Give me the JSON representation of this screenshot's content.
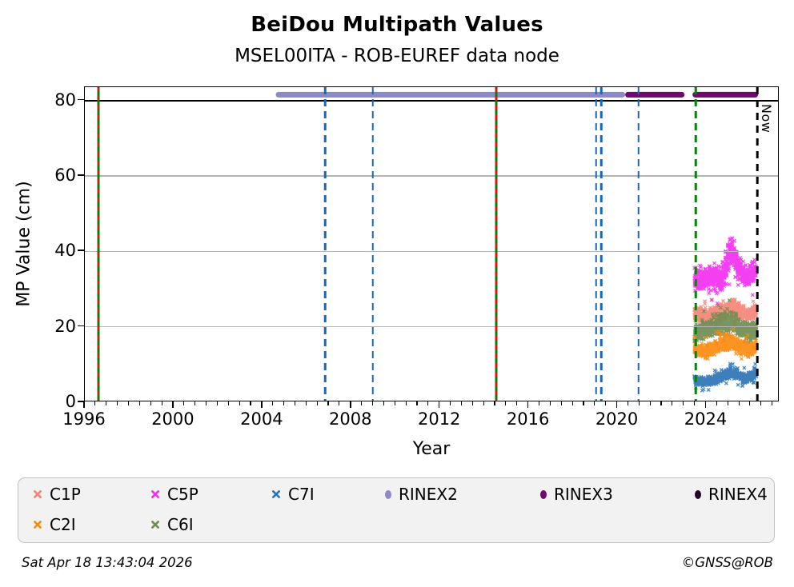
{
  "title": "BeiDou Multipath Values",
  "subtitle": "MSEL00ITA - ROB-EUREF data node",
  "footer": {
    "timestamp": "Sat Apr 18 13:43:04 2026",
    "credit": "©GNSS@ROB"
  },
  "colors": {
    "C1P": "#f58478",
    "C2I": "#fd8a0e",
    "C5P": "#f32ef0",
    "C6I": "#6f8d51",
    "C7I": "#2d74b5",
    "RINEX2": "#8d89c7",
    "RINEX3": "#6e0a6e",
    "RINEX4": "#250527",
    "event_blue": "#1868b8",
    "event_green": "#077d07",
    "event_red": "#e51212",
    "gridline": "#b4b4b4"
  },
  "chart_data": {
    "type": "scatter",
    "title": "BeiDou Multipath Values",
    "subtitle": "MSEL00ITA - ROB-EUREF data node",
    "xlabel": "Year",
    "ylabel": "MP Value (cm)",
    "xlim": [
      1996,
      2027.3
    ],
    "ylim": [
      0,
      83.5
    ],
    "x_major_ticks": [
      1996,
      2000,
      2004,
      2008,
      2012,
      2016,
      2020,
      2024
    ],
    "x_minor_step": 0.5,
    "y_ticks": [
      0,
      20,
      40,
      60,
      80
    ],
    "gridlines_y": [
      20,
      40,
      60
    ],
    "solid_hline_y": 80,
    "grid": "horizontal-only",
    "now": {
      "year": 2026.29,
      "label": "Now"
    },
    "event_lines": [
      {
        "year": 1996.6,
        "kind": "green-red"
      },
      {
        "year": 2006.82,
        "kind": "blue"
      },
      {
        "year": 2008.98,
        "kind": "blue"
      },
      {
        "year": 2014.54,
        "kind": "green-red"
      },
      {
        "year": 2019.04,
        "kind": "blue"
      },
      {
        "year": 2019.26,
        "kind": "blue"
      },
      {
        "year": 2020.94,
        "kind": "blue"
      },
      {
        "year": 2023.53,
        "kind": "green-dash"
      }
    ],
    "availability_bars": [
      {
        "series": "RINEX2",
        "start": 2004.62,
        "end": 2020.4,
        "y": 81.5
      },
      {
        "series": "RINEX3",
        "start": 2020.4,
        "end": 2023.08,
        "y": 81.5
      },
      {
        "series": "RINEX3",
        "start": 2023.44,
        "end": 2026.4,
        "y": 81.5
      }
    ],
    "series": [
      {
        "name": "C1P",
        "marker": "x",
        "x_range": [
          2023.53,
          2026.32
        ],
        "profile": [
          [
            2023.53,
            23,
            3.2
          ],
          [
            2024.1,
            22.5,
            3
          ],
          [
            2024.6,
            23.5,
            3.2
          ],
          [
            2025.0,
            24.5,
            3.4
          ],
          [
            2025.3,
            25,
            3.4
          ],
          [
            2025.7,
            23.5,
            3
          ],
          [
            2026.0,
            23,
            2.8
          ],
          [
            2026.32,
            24,
            3
          ]
        ]
      },
      {
        "name": "C6I",
        "marker": "x",
        "x_range": [
          2023.53,
          2026.32
        ],
        "profile": [
          [
            2023.53,
            18,
            4
          ],
          [
            2024.0,
            18.5,
            4.2
          ],
          [
            2024.5,
            20,
            4.5
          ],
          [
            2024.9,
            21,
            4.8
          ],
          [
            2025.2,
            21,
            4.5
          ],
          [
            2025.6,
            19.5,
            4.2
          ],
          [
            2026.0,
            18,
            3.8
          ],
          [
            2026.32,
            19,
            4
          ]
        ]
      },
      {
        "name": "C2I",
        "marker": "x",
        "x_range": [
          2023.53,
          2026.32
        ],
        "profile": [
          [
            2023.53,
            13.5,
            3
          ],
          [
            2024.0,
            13,
            2.8
          ],
          [
            2024.5,
            14,
            3.2
          ],
          [
            2024.9,
            15.5,
            3.4
          ],
          [
            2025.2,
            15.5,
            3.4
          ],
          [
            2025.6,
            14.5,
            3
          ],
          [
            2026.0,
            13.5,
            2.8
          ],
          [
            2026.32,
            14.5,
            3
          ]
        ]
      },
      {
        "name": "C7I",
        "marker": "x",
        "x_range": [
          2023.53,
          2026.32
        ],
        "profile": [
          [
            2023.53,
            5.5,
            2
          ],
          [
            2024.0,
            5,
            1.8
          ],
          [
            2024.4,
            5.5,
            2
          ],
          [
            2024.8,
            6.5,
            2.2
          ],
          [
            2025.1,
            7.5,
            2.4
          ],
          [
            2025.4,
            7,
            2.2
          ],
          [
            2025.8,
            6,
            2
          ],
          [
            2026.1,
            6.5,
            2
          ],
          [
            2026.32,
            7.5,
            2.2
          ]
        ]
      },
      {
        "name": "C5P",
        "marker": "x",
        "x_range": [
          2023.53,
          2026.32
        ],
        "profile": [
          [
            2023.53,
            33,
            5
          ],
          [
            2023.9,
            32,
            5
          ],
          [
            2024.35,
            33.5,
            5.5
          ],
          [
            2024.75,
            32,
            6
          ],
          [
            2025.0,
            37,
            6.5
          ],
          [
            2025.15,
            40,
            7
          ],
          [
            2025.35,
            38,
            6.5
          ],
          [
            2025.6,
            34.5,
            5.5
          ],
          [
            2025.9,
            33,
            4.5
          ],
          [
            2026.15,
            34,
            4.5
          ],
          [
            2026.32,
            35,
            4.5
          ]
        ]
      }
    ],
    "legend": {
      "items": [
        {
          "label": "C1P",
          "marker": "x",
          "row": 0,
          "col": 0
        },
        {
          "label": "C5P",
          "marker": "x",
          "row": 0,
          "col": 1
        },
        {
          "label": "C7I",
          "marker": "x",
          "row": 0,
          "col": 2
        },
        {
          "label": "RINEX2",
          "marker": "dot",
          "row": 0,
          "col": 3
        },
        {
          "label": "RINEX3",
          "marker": "dot",
          "row": 0,
          "col": 4
        },
        {
          "label": "RINEX4",
          "marker": "dot",
          "row": 0,
          "col": 5
        },
        {
          "label": "C2I",
          "marker": "x",
          "row": 1,
          "col": 0
        },
        {
          "label": "C6I",
          "marker": "x",
          "row": 1,
          "col": 1
        }
      ],
      "position": "bottom"
    }
  }
}
